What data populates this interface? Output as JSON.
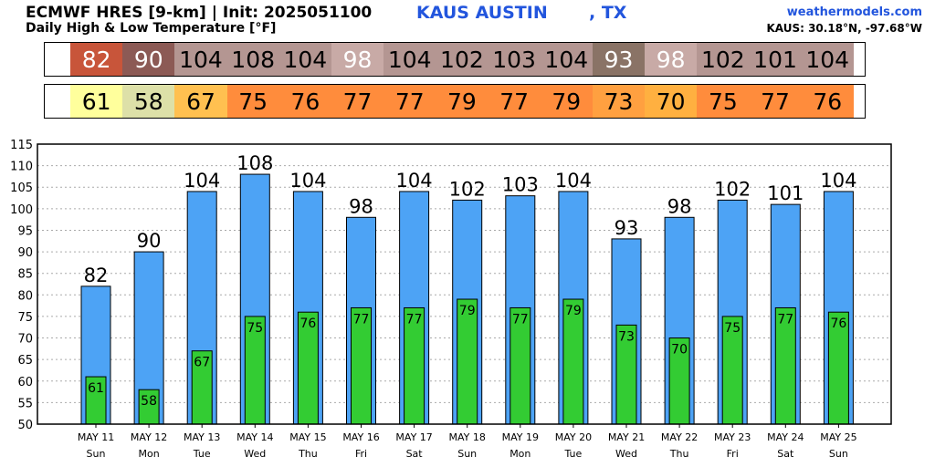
{
  "header": {
    "title": "ECMWF HRES [9-km] | Init: 2025051100",
    "subtitle": "Daily High & Low Temperature [°F]",
    "station": "KAUS AUSTIN",
    "state": ", TX",
    "site": "weathermodels.com",
    "coords": "KAUS: 30.18°N, -97.68°W"
  },
  "colors": {
    "high_bar": "#4da3f5",
    "low_bar": "#33cc33",
    "grid": "#aaaaaa",
    "high_strip": [
      "#c8553a",
      "#8c5a55",
      "#b49692",
      "#b49692",
      "#b49692",
      "#c8aaa6",
      "#b49692",
      "#b49692",
      "#b49692",
      "#b49692",
      "#8a7366",
      "#c8aaa6",
      "#b49692",
      "#b49692",
      "#b49692"
    ],
    "low_strip": [
      "#ffff9c",
      "#dde0a8",
      "#ffc050",
      "#ff8c3c",
      "#ff8c3c",
      "#ff8c3c",
      "#ff8c3c",
      "#ff8c3c",
      "#ff8c3c",
      "#ff8c3c",
      "#ffa040",
      "#ffb040",
      "#ff8c3c",
      "#ff8c3c",
      "#ff8c3c"
    ]
  },
  "chart_data": {
    "type": "bar",
    "title": "Daily High & Low Temperature [°F]",
    "dates": [
      "MAY 11",
      "MAY 12",
      "MAY 13",
      "MAY 14",
      "MAY 15",
      "MAY 16",
      "MAY 17",
      "MAY 18",
      "MAY 19",
      "MAY 20",
      "MAY 21",
      "MAY 22",
      "MAY 23",
      "MAY 24",
      "MAY 25"
    ],
    "days": [
      "Sun",
      "Mon",
      "Tue",
      "Wed",
      "Thu",
      "Fri",
      "Sat",
      "Sun",
      "Mon",
      "Tue",
      "Wed",
      "Thu",
      "Fri",
      "Sat",
      "Sun"
    ],
    "series": [
      {
        "values": [
          82,
          90,
          104,
          108,
          104,
          98,
          104,
          102,
          103,
          104,
          93,
          98,
          102,
          101,
          104
        ],
        "labels": [
          "82",
          "90",
          "104",
          "108",
          "104",
          "98",
          "104",
          "102",
          "103",
          "104",
          "93",
          "98",
          "102",
          "101",
          "104"
        ]
      },
      {
        "values": [
          61,
          58,
          67,
          75,
          76,
          77,
          77,
          79,
          77,
          79,
          73,
          70,
          75,
          77,
          76
        ],
        "labels": [
          "61",
          "58",
          "67",
          "75",
          "76",
          "77",
          "77",
          "79",
          "77",
          "79",
          "73",
          "70",
          "75",
          "77",
          "76"
        ]
      }
    ],
    "ylim": [
      50,
      115
    ],
    "yticks": [
      "50",
      "55",
      "60",
      "65",
      "70",
      "75",
      "80",
      "85",
      "90",
      "95",
      "100",
      "105",
      "110",
      "115"
    ],
    "grid": true
  }
}
